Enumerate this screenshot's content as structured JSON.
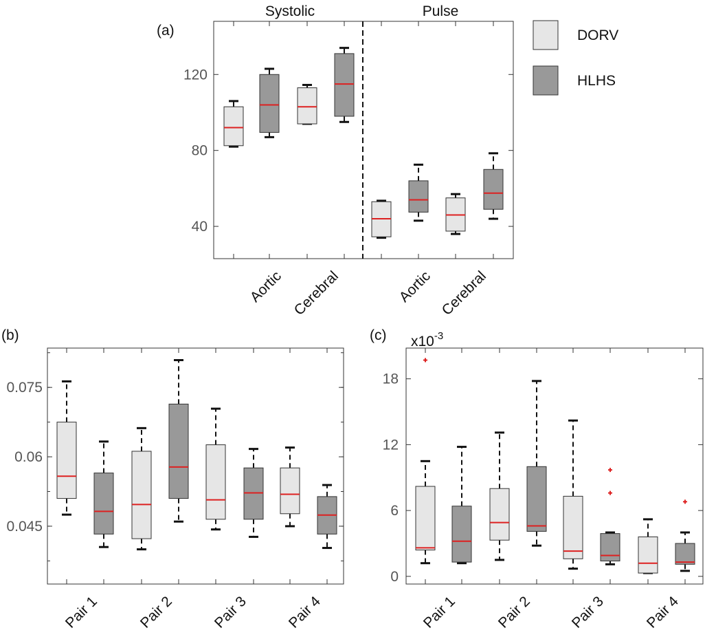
{
  "colors": {
    "DORV": "#e6e6e6",
    "HLHS": "#999999",
    "median": "#dd2020",
    "outlier": "#dd2020",
    "edge": "#333333"
  },
  "legend": {
    "entries": [
      {
        "name": "DORV",
        "color": "#e6e6e6"
      },
      {
        "name": "HLHS",
        "color": "#999999"
      }
    ]
  },
  "chart_data": [
    {
      "id": "a",
      "panel_label": "(a)",
      "type": "box",
      "titles": [
        "Systolic",
        "Pulse"
      ],
      "ylim": [
        23,
        148
      ],
      "yticks": [
        40,
        80,
        120
      ],
      "ytick_labels": [
        "40",
        "80",
        "120"
      ],
      "xtick_labels": [
        "Aortic",
        "Cerebral",
        "Aortic",
        "Cerebral"
      ],
      "boxes": [
        {
          "group": "DORV",
          "min": 82,
          "q1": 82.5,
          "median": 92,
          "q3": 103,
          "max": 106
        },
        {
          "group": "HLHS",
          "min": 87,
          "q1": 89.5,
          "median": 104,
          "q3": 120,
          "max": 123
        },
        {
          "group": "DORV",
          "min": 94,
          "q1": 94,
          "median": 103,
          "q3": 113,
          "max": 114.5
        },
        {
          "group": "HLHS",
          "min": 95,
          "q1": 98,
          "median": 115,
          "q3": 131,
          "max": 134
        },
        {
          "group": "DORV",
          "min": 34,
          "q1": 34.5,
          "median": 44,
          "q3": 53,
          "max": 53.5
        },
        {
          "group": "HLHS",
          "min": 43,
          "q1": 47.5,
          "median": 54,
          "q3": 64,
          "max": 72.5
        },
        {
          "group": "DORV",
          "min": 36,
          "q1": 37.5,
          "median": 46,
          "q3": 55,
          "max": 57
        },
        {
          "group": "HLHS",
          "min": 44,
          "q1": 49,
          "median": 57.5,
          "q3": 70,
          "max": 78.5
        }
      ]
    },
    {
      "id": "b",
      "panel_label": "(b)",
      "type": "box",
      "ylim": [
        0.0325,
        0.0835
      ],
      "yticks": [
        0.045,
        0.06,
        0.075
      ],
      "ytick_labels": [
        "0.045",
        "0.06",
        "0.075"
      ],
      "xtick_labels": [
        "Pair 1",
        "Pair 2",
        "Pair 3",
        "Pair 4"
      ],
      "boxes": [
        {
          "group": "DORV",
          "min": 0.0475,
          "q1": 0.051,
          "median": 0.0558,
          "q3": 0.0675,
          "max": 0.0763
        },
        {
          "group": "HLHS",
          "min": 0.0405,
          "q1": 0.0433,
          "median": 0.0482,
          "q3": 0.0565,
          "max": 0.0633
        },
        {
          "group": "DORV",
          "min": 0.04,
          "q1": 0.0423,
          "median": 0.0497,
          "q3": 0.0612,
          "max": 0.0662
        },
        {
          "group": "HLHS",
          "min": 0.046,
          "q1": 0.051,
          "median": 0.0578,
          "q3": 0.0714,
          "max": 0.0809
        },
        {
          "group": "DORV",
          "min": 0.0443,
          "q1": 0.0465,
          "median": 0.0507,
          "q3": 0.0626,
          "max": 0.0704
        },
        {
          "group": "HLHS",
          "min": 0.0427,
          "q1": 0.0465,
          "median": 0.0522,
          "q3": 0.0576,
          "max": 0.0617
        },
        {
          "group": "DORV",
          "min": 0.045,
          "q1": 0.0477,
          "median": 0.0519,
          "q3": 0.0576,
          "max": 0.062
        },
        {
          "group": "HLHS",
          "min": 0.0403,
          "q1": 0.0433,
          "median": 0.0474,
          "q3": 0.0514,
          "max": 0.0539
        }
      ]
    },
    {
      "id": "c",
      "panel_label": "(c)",
      "type": "box",
      "exponent_label": "x10",
      "exponent_power": "-3",
      "ylim": [
        -0.7,
        20.8
      ],
      "yticks": [
        0,
        6,
        12,
        18
      ],
      "ytick_labels": [
        "0",
        "6",
        "12",
        "18"
      ],
      "xtick_labels": [
        "Pair 1",
        "Pair 2",
        "Pair 3",
        "Pair 4"
      ],
      "boxes": [
        {
          "group": "DORV",
          "min": 1.2,
          "q1": 2.4,
          "median": 2.6,
          "q3": 8.2,
          "max": 10.5,
          "outliers": [
            19.7
          ]
        },
        {
          "group": "HLHS",
          "min": 1.2,
          "q1": 1.3,
          "median": 3.2,
          "q3": 6.4,
          "max": 11.8
        },
        {
          "group": "DORV",
          "min": 1.5,
          "q1": 3.3,
          "median": 4.9,
          "q3": 8.0,
          "max": 13.1
        },
        {
          "group": "HLHS",
          "min": 2.8,
          "q1": 4.1,
          "median": 4.6,
          "q3": 10.0,
          "max": 17.8
        },
        {
          "group": "DORV",
          "min": 0.7,
          "q1": 1.6,
          "median": 2.3,
          "q3": 7.3,
          "max": 14.2
        },
        {
          "group": "HLHS",
          "min": 1.1,
          "q1": 1.4,
          "median": 1.9,
          "q3": 3.9,
          "max": 4.0,
          "outliers": [
            7.6,
            9.7
          ]
        },
        {
          "group": "DORV",
          "min": 0.3,
          "q1": 0.3,
          "median": 1.2,
          "q3": 3.6,
          "max": 5.2
        },
        {
          "group": "HLHS",
          "min": 0.5,
          "q1": 1.1,
          "median": 1.3,
          "q3": 3.0,
          "max": 4.0,
          "outliers": [
            6.8
          ]
        }
      ]
    }
  ]
}
